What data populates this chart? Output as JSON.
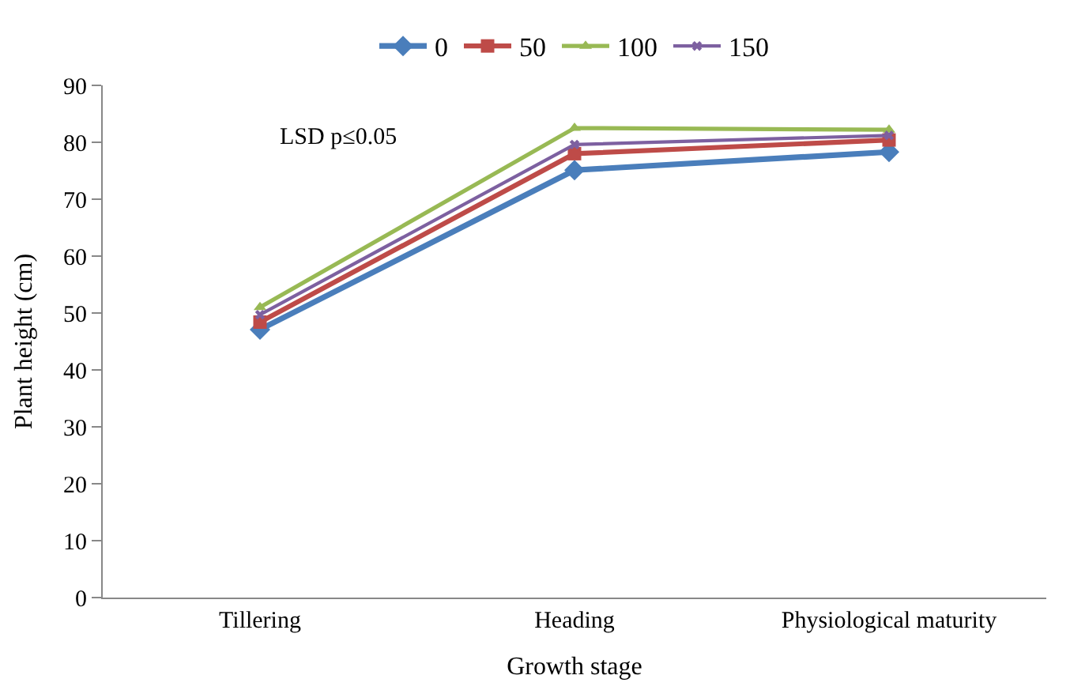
{
  "chart_data": {
    "type": "line",
    "xlabel": "Growth stage",
    "ylabel": "Plant height (cm)",
    "categories": [
      "Tillering",
      "Heading",
      "Physiological maturity"
    ],
    "series": [
      {
        "name": "0",
        "color": "#4a7ebb",
        "marker": "diamond",
        "values": [
          47.1,
          75.1,
          78.3
        ]
      },
      {
        "name": "50",
        "color": "#be4b48",
        "marker": "square",
        "values": [
          48.4,
          78.0,
          80.4
        ]
      },
      {
        "name": "100",
        "color": "#98b954",
        "marker": "triangle",
        "values": [
          51.0,
          82.5,
          82.2
        ]
      },
      {
        "name": "150",
        "color": "#7d60a0",
        "marker": "cross",
        "values": [
          49.7,
          79.6,
          81.2
        ]
      }
    ],
    "ylim": [
      0,
      90
    ],
    "yticks": [
      0,
      10,
      20,
      30,
      40,
      50,
      60,
      70,
      80,
      90
    ],
    "grid": false,
    "legend": "top",
    "line_style": "solid",
    "annotations": [
      "LSD p≤0.05"
    ]
  }
}
